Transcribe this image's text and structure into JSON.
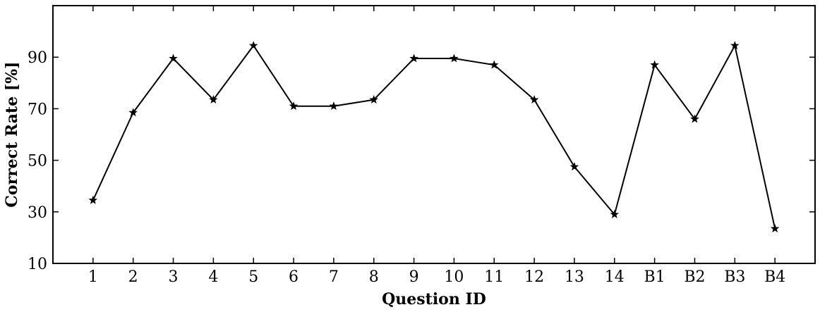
{
  "chart_data": {
    "type": "line",
    "title": "",
    "xlabel": "Question ID",
    "ylabel": "Correct Rate [%]",
    "categories": [
      "1",
      "2",
      "3",
      "4",
      "5",
      "6",
      "7",
      "8",
      "9",
      "10",
      "11",
      "12",
      "13",
      "14",
      "B1",
      "B2",
      "B3",
      "B4"
    ],
    "series": [
      {
        "values": [
          34.5,
          68.5,
          89.5,
          73.5,
          94.5,
          71,
          71,
          73.5,
          89.5,
          89.5,
          87,
          73.5,
          47.5,
          29,
          87,
          66,
          94.5,
          23.5
        ],
        "color": "#000000",
        "marker": "star"
      }
    ],
    "ylim": [
      10,
      110
    ],
    "yticks": [
      10,
      30,
      50,
      70,
      90
    ],
    "grid": false,
    "legend": "none"
  }
}
